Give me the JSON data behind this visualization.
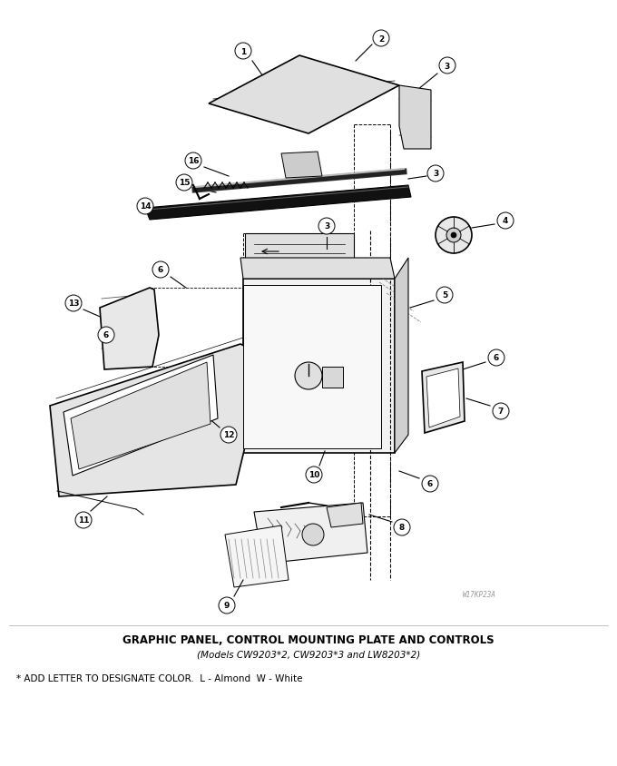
{
  "title": "GRAPHIC PANEL, CONTROL MOUNTING PLATE AND CONTROLS",
  "subtitle": "(Models CW9203*2, CW9203*3 and LW8203*2)",
  "footnote": "* ADD LETTER TO DESIGNATE COLOR.  L - Almond  W - White",
  "watermark": "W17KP23A",
  "bg_color": "#ffffff",
  "fig_width": 6.8,
  "fig_height": 8.45,
  "dpi": 100
}
